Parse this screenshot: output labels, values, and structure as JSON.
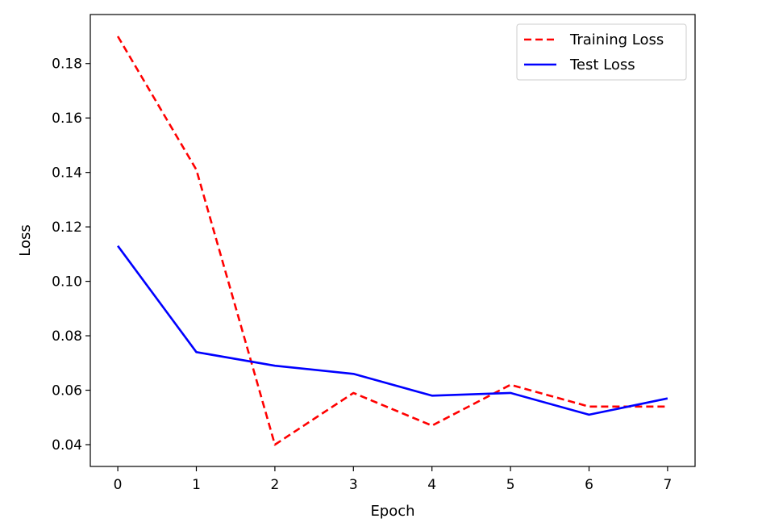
{
  "chart_data": {
    "type": "line",
    "title": "",
    "xlabel": "Epoch",
    "ylabel": "Loss",
    "x": [
      0,
      1,
      2,
      3,
      4,
      5,
      6,
      7
    ],
    "xlim": [
      -0.35,
      7.35
    ],
    "ylim": [
      0.032,
      0.198
    ],
    "xticks": [
      0,
      1,
      2,
      3,
      4,
      5,
      6,
      7
    ],
    "xtick_labels": [
      "0",
      "1",
      "2",
      "3",
      "4",
      "5",
      "6",
      "7"
    ],
    "yticks": [
      0.04,
      0.06,
      0.08,
      0.1,
      0.12,
      0.14,
      0.16,
      0.18
    ],
    "ytick_labels": [
      "0.04",
      "0.06",
      "0.08",
      "0.10",
      "0.12",
      "0.14",
      "0.16",
      "0.18"
    ],
    "grid": false,
    "legend_position": "top-right",
    "series": [
      {
        "name": "Training Loss",
        "color": "#ff0000",
        "line_style": "dashed",
        "values": [
          0.19,
          0.141,
          0.04,
          0.059,
          0.047,
          0.062,
          0.054,
          0.054
        ]
      },
      {
        "name": "Test Loss",
        "color": "#0000ff",
        "line_style": "solid",
        "values": [
          0.113,
          0.074,
          0.069,
          0.066,
          0.058,
          0.059,
          0.051,
          0.057
        ]
      }
    ]
  }
}
